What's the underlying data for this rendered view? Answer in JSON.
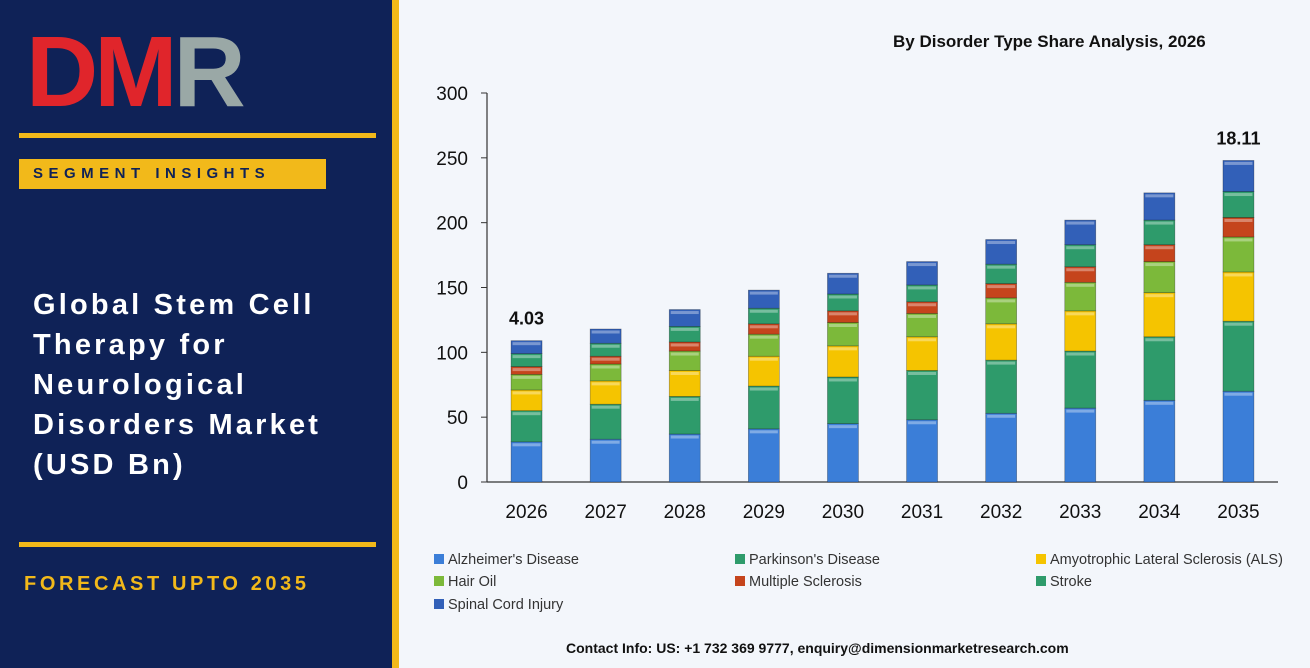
{
  "brand": {
    "logo_part1": "DM",
    "logo_part2": "R"
  },
  "sidebar": {
    "badge": "SEGMENT INSIGHTS",
    "title": "Global Stem Cell\nTherapy for\nNeurological\nDisorders  Market\n(USD Bn)",
    "forecast": "FORECAST UPTO 2035"
  },
  "colors": {
    "navy": "#0f2257",
    "gold": "#f2b91a",
    "logo_red": "#e0252b",
    "logo_gray": "#9aa8a6"
  },
  "chart_data": {
    "type": "bar",
    "stacked": true,
    "title": "By Disorder Type Share Analysis, 2026",
    "categories": [
      "2026",
      "2027",
      "2028",
      "2029",
      "2030",
      "2031",
      "2032",
      "2033",
      "2034",
      "2035"
    ],
    "ylim": [
      0,
      300
    ],
    "yticks": [
      "0",
      "50",
      "100",
      "150",
      "200",
      "250",
      "300"
    ],
    "grid": false,
    "legend_position": "bottom",
    "series": [
      {
        "name": "Alzheimer's Disease",
        "color": "#3b7ed8",
        "values": [
          31,
          33,
          37,
          41,
          45,
          48,
          53,
          57,
          63,
          70
        ]
      },
      {
        "name": "Parkinson's Disease",
        "color": "#2e9b6b",
        "values": [
          24,
          27,
          29,
          33,
          36,
          38,
          41,
          44,
          49,
          54
        ]
      },
      {
        "name": "Amyotrophic Lateral Sclerosis (ALS)",
        "color": "#f5c400",
        "values": [
          16,
          18,
          20,
          23,
          24,
          26,
          28,
          31,
          34,
          38
        ]
      },
      {
        "name": "Hair Oil",
        "color": "#7cb93a",
        "values": [
          12,
          13,
          15,
          17,
          18,
          18,
          20,
          22,
          24,
          27
        ]
      },
      {
        "name": "Multiple Sclerosis",
        "color": "#c5441c",
        "values": [
          6,
          6,
          7,
          8,
          9,
          9,
          11,
          12,
          13,
          15
        ]
      },
      {
        "name": "Stroke",
        "color": "#2e9b6b",
        "values": [
          10,
          10,
          12,
          12,
          13,
          13,
          15,
          17,
          19,
          20
        ]
      },
      {
        "name": "Spinal Cord Injury",
        "color": "#3260b8",
        "values": [
          10,
          11,
          13,
          14,
          16,
          18,
          19,
          19,
          21,
          24
        ]
      }
    ],
    "annotations": [
      {
        "category": "2026",
        "text": "4.03"
      },
      {
        "category": "2035",
        "text": "18.11"
      }
    ]
  },
  "footer": {
    "contact": "Contact Info: US: +1 732 369 9777, enquiry@dimensionmarketresearch.com"
  }
}
